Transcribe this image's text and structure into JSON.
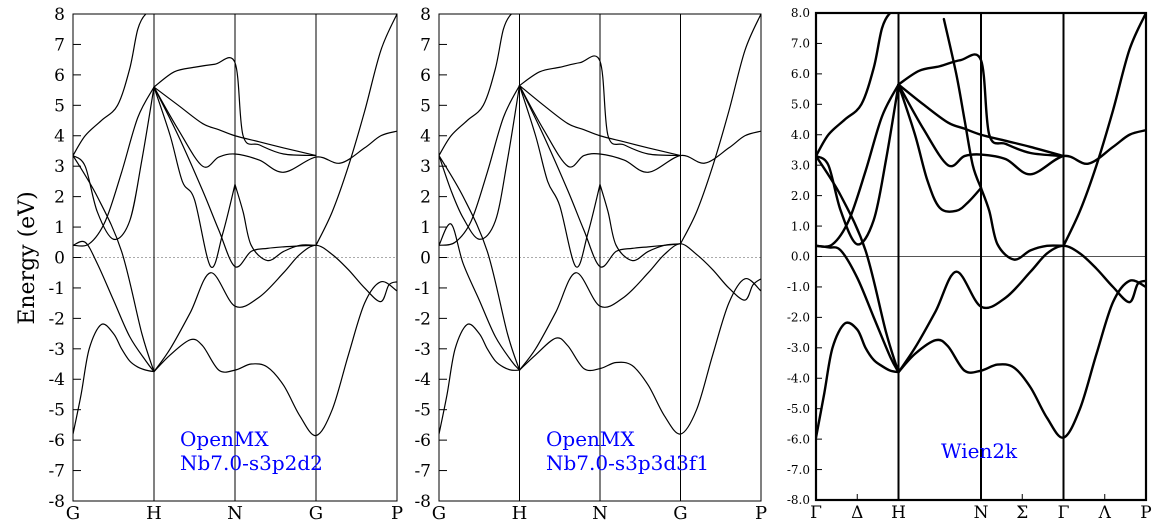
{
  "ylabel": "Energy (eV)",
  "chart_data": [
    {
      "type": "line",
      "title": "",
      "ylim": [
        -8,
        8
      ],
      "ytick_labels": [
        "-8",
        "-7",
        "-6",
        "-5",
        "-4",
        "-3",
        "-2",
        "-1",
        "0",
        "1",
        "2",
        "3",
        "4",
        "5",
        "6",
        "7",
        "8"
      ],
      "xtick_labels": [
        "G",
        "H",
        "N",
        "G",
        "P"
      ],
      "vlines": [
        1,
        2,
        3
      ],
      "zero_line": "dotted",
      "annotation": [
        "OpenMX",
        "Nb7.0-s3p2d2"
      ],
      "annotation_color": "#0000ff",
      "series": [
        {
          "x": [
            0,
            0.1,
            0.2,
            0.35,
            0.5,
            0.6,
            0.7,
            0.8,
            0.9,
            1.0
          ],
          "y": [
            -5.8,
            -4.5,
            -3.0,
            -2.2,
            -2.5,
            -3.0,
            -3.4,
            -3.6,
            -3.7,
            -3.75
          ]
        },
        {
          "x": [
            1.0,
            1.2,
            1.45,
            1.6,
            1.8,
            2.0,
            2.2,
            2.4,
            2.6,
            2.8,
            3.0,
            3.2,
            3.4,
            3.6,
            3.8,
            4.0
          ],
          "y": [
            -3.75,
            -3.2,
            -2.7,
            -2.9,
            -3.7,
            -3.7,
            -3.5,
            -3.6,
            -4.2,
            -5.2,
            -5.85,
            -5.0,
            -3.2,
            -1.5,
            -0.8,
            -1.1
          ]
        },
        {
          "x": [
            0,
            0.15,
            0.3,
            0.5,
            0.7,
            0.9,
            1.0
          ],
          "y": [
            0.4,
            0.5,
            -0.2,
            -1.4,
            -2.6,
            -3.4,
            -3.75
          ]
        },
        {
          "x": [
            1.0,
            1.2,
            1.45,
            1.7,
            2.0,
            2.3,
            2.6,
            2.8,
            3.0,
            3.2,
            3.4,
            3.6,
            3.8,
            3.9,
            4.0
          ],
          "y": [
            -3.75,
            -3.0,
            -1.8,
            -0.5,
            -1.6,
            -1.3,
            -0.5,
            0.1,
            0.4,
            0.1,
            -0.4,
            -1.0,
            -1.45,
            -0.9,
            -0.8
          ]
        },
        {
          "x": [
            0,
            0.3,
            0.6,
            0.85,
            1.0
          ],
          "y": [
            3.35,
            2.0,
            0.2,
            -2.5,
            -3.75
          ]
        },
        {
          "x": [
            0,
            0.2,
            0.4,
            0.6,
            0.8,
            1.0
          ],
          "y": [
            0.4,
            0.45,
            1.2,
            2.8,
            4.6,
            5.6
          ]
        },
        {
          "x": [
            0,
            0.15,
            0.3,
            0.5,
            0.7,
            0.85,
            1.0
          ],
          "y": [
            3.35,
            3.0,
            1.5,
            0.6,
            1.2,
            3.2,
            5.6
          ]
        },
        {
          "x": [
            0,
            0.15,
            0.35,
            0.55,
            0.7,
            0.8,
            0.9,
            1.0
          ],
          "y": [
            3.35,
            4.0,
            4.5,
            5.0,
            6.2,
            7.5,
            8.0,
            8.0
          ]
        },
        {
          "x": [
            1.0,
            1.2,
            1.35,
            1.5,
            1.7,
            1.85,
            2.0
          ],
          "y": [
            5.6,
            4.0,
            2.5,
            1.9,
            -0.3,
            0.8,
            2.4
          ]
        },
        {
          "x": [
            2.0,
            2.1,
            2.2,
            2.4,
            2.6,
            2.8,
            3.0
          ],
          "y": [
            2.4,
            1.5,
            0.4,
            -0.1,
            0.2,
            0.4,
            0.4
          ]
        },
        {
          "x": [
            1.0,
            1.3,
            1.6,
            1.8,
            2.0,
            2.3,
            2.6,
            3.0,
            3.3,
            3.6,
            3.8,
            4.0
          ],
          "y": [
            5.6,
            4.2,
            3.0,
            3.3,
            3.4,
            3.2,
            2.8,
            3.3,
            3.1,
            3.6,
            4.0,
            4.15
          ]
        },
        {
          "x": [
            1.0,
            1.25,
            1.5,
            1.75,
            2.0,
            2.1,
            2.3,
            2.6,
            3.0
          ],
          "y": [
            5.6,
            6.1,
            6.25,
            6.35,
            6.4,
            4.0,
            3.7,
            3.4,
            3.35
          ]
        },
        {
          "x": [
            1.0,
            1.3,
            1.6,
            1.8,
            2.0,
            2.3,
            2.6,
            3.0
          ],
          "y": [
            5.6,
            5.0,
            4.4,
            4.2,
            4.0,
            3.8,
            3.6,
            3.35
          ]
        },
        {
          "x": [
            1.0,
            1.3,
            1.6,
            1.8,
            2.0,
            2.2,
            2.4,
            2.6,
            2.8,
            3.0
          ],
          "y": [
            5.6,
            4.0,
            2.2,
            0.9,
            -0.3,
            0.2,
            0.3,
            0.35,
            0.38,
            0.4
          ]
        },
        {
          "x": [
            3.0,
            3.2,
            3.4,
            3.6,
            3.8,
            4.0
          ],
          "y": [
            0.4,
            1.5,
            3.0,
            4.8,
            6.8,
            8.0
          ]
        }
      ]
    },
    {
      "type": "line",
      "title": "",
      "ylim": [
        -8,
        8
      ],
      "ytick_labels": [
        "-8",
        "-7",
        "-6",
        "-5",
        "-4",
        "-3",
        "-2",
        "-1",
        "0",
        "1",
        "2",
        "3",
        "4",
        "5",
        "6",
        "7",
        "8"
      ],
      "xtick_labels": [
        "G",
        "H",
        "N",
        "G",
        "P"
      ],
      "vlines": [
        1,
        2,
        3
      ],
      "zero_line": "dotted",
      "annotation": [
        "OpenMX",
        "Nb7.0-s3p3d3f1"
      ],
      "annotation_color": "#0000ff",
      "series": [
        {
          "x": [
            0,
            0.1,
            0.2,
            0.35,
            0.5,
            0.6,
            0.7,
            0.8,
            0.9,
            1.0
          ],
          "y": [
            -5.8,
            -4.5,
            -3.0,
            -2.2,
            -2.5,
            -3.0,
            -3.4,
            -3.6,
            -3.7,
            -3.7
          ]
        },
        {
          "x": [
            1.0,
            1.2,
            1.45,
            1.6,
            1.8,
            2.0,
            2.2,
            2.4,
            2.6,
            2.8,
            3.0,
            3.2,
            3.4,
            3.6,
            3.8,
            4.0
          ],
          "y": [
            -3.7,
            -3.2,
            -2.65,
            -2.9,
            -3.65,
            -3.65,
            -3.45,
            -3.55,
            -4.2,
            -5.2,
            -5.8,
            -5.0,
            -3.2,
            -1.5,
            -0.7,
            -1.1
          ]
        },
        {
          "x": [
            0,
            0.15,
            0.3,
            0.5,
            0.7,
            0.9,
            1.0
          ],
          "y": [
            0.4,
            1.1,
            -0.2,
            -1.4,
            -2.6,
            -3.4,
            -3.7
          ]
        },
        {
          "x": [
            1.0,
            1.2,
            1.45,
            1.7,
            2.0,
            2.3,
            2.6,
            2.8,
            3.0,
            3.2,
            3.4,
            3.6,
            3.8,
            3.9,
            4.0
          ],
          "y": [
            -3.7,
            -3.0,
            -1.8,
            -0.5,
            -1.6,
            -1.3,
            -0.5,
            0.1,
            0.45,
            0.1,
            -0.4,
            -1.0,
            -1.4,
            -0.9,
            -0.7
          ]
        },
        {
          "x": [
            0,
            0.3,
            0.6,
            0.85,
            1.0
          ],
          "y": [
            3.35,
            2.0,
            0.2,
            -2.5,
            -3.7
          ]
        },
        {
          "x": [
            0,
            0.2,
            0.4,
            0.6,
            0.8,
            1.0
          ],
          "y": [
            0.4,
            0.5,
            1.2,
            2.8,
            4.6,
            5.65
          ]
        },
        {
          "x": [
            0,
            0.15,
            0.3,
            0.5,
            0.7,
            0.85,
            1.0
          ],
          "y": [
            3.35,
            2.2,
            1.3,
            0.6,
            1.2,
            3.2,
            5.65
          ]
        },
        {
          "x": [
            0,
            0.15,
            0.35,
            0.55,
            0.7,
            0.8,
            0.9,
            1.0
          ],
          "y": [
            3.35,
            4.0,
            4.5,
            5.0,
            6.2,
            7.5,
            8.0,
            8.0
          ]
        },
        {
          "x": [
            1.0,
            1.2,
            1.35,
            1.5,
            1.7,
            1.85,
            2.0
          ],
          "y": [
            5.65,
            4.0,
            2.5,
            1.7,
            -0.3,
            0.8,
            2.4
          ]
        },
        {
          "x": [
            2.0,
            2.1,
            2.2,
            2.4,
            2.6,
            2.8,
            3.0
          ],
          "y": [
            2.4,
            1.5,
            0.4,
            -0.1,
            0.2,
            0.4,
            0.45
          ]
        },
        {
          "x": [
            1.0,
            1.3,
            1.6,
            1.8,
            2.0,
            2.3,
            2.6,
            3.0,
            3.3,
            3.6,
            3.8,
            4.0
          ],
          "y": [
            5.65,
            4.2,
            3.0,
            3.35,
            3.4,
            3.2,
            2.8,
            3.35,
            3.1,
            3.6,
            4.0,
            4.15
          ]
        },
        {
          "x": [
            1.0,
            1.25,
            1.5,
            1.75,
            2.0,
            2.1,
            2.3,
            2.6,
            3.0
          ],
          "y": [
            5.65,
            6.1,
            6.25,
            6.4,
            6.45,
            4.0,
            3.7,
            3.4,
            3.35
          ]
        },
        {
          "x": [
            1.0,
            1.3,
            1.6,
            1.8,
            2.0,
            2.3,
            2.6,
            3.0
          ],
          "y": [
            5.65,
            5.0,
            4.4,
            4.2,
            4.0,
            3.8,
            3.6,
            3.35
          ]
        },
        {
          "x": [
            1.0,
            1.3,
            1.6,
            1.8,
            2.0,
            2.2,
            2.4,
            2.6,
            2.8,
            3.0
          ],
          "y": [
            5.65,
            4.0,
            2.2,
            0.9,
            -0.3,
            0.2,
            0.3,
            0.35,
            0.4,
            0.45
          ]
        },
        {
          "x": [
            3.0,
            3.2,
            3.4,
            3.6,
            3.8,
            4.0
          ],
          "y": [
            0.45,
            1.5,
            3.0,
            4.8,
            6.8,
            8.0
          ]
        }
      ]
    },
    {
      "type": "line",
      "title": "",
      "ylim": [
        -8,
        8
      ],
      "ytick_labels": [
        "-8.0",
        "-7.0",
        "-6.0",
        "-5.0",
        "-4.0",
        "-3.0",
        "-2.0",
        "-1.0",
        "0.0",
        "1.0",
        "2.0",
        "3.0",
        "4.0",
        "5.0",
        "6.0",
        "7.0",
        "8.0"
      ],
      "xtick_labels": [
        "Γ",
        "Δ",
        "H",
        "N",
        "Σ",
        "Γ",
        "Λ",
        "P"
      ],
      "xtick_positions": [
        0,
        0.5,
        1,
        2,
        2.5,
        3,
        3.5,
        4
      ],
      "vlines": [
        1,
        2,
        3
      ],
      "zero_line": "solid",
      "annotation": [
        "Wien2k"
      ],
      "annotation_color": "#0000ff",
      "series": [
        {
          "x": [
            0,
            0.1,
            0.2,
            0.35,
            0.5,
            0.6,
            0.7,
            0.8,
            0.9,
            1.0
          ],
          "y": [
            -5.95,
            -4.5,
            -3.0,
            -2.2,
            -2.4,
            -3.0,
            -3.4,
            -3.6,
            -3.75,
            -3.8
          ]
        },
        {
          "x": [
            1.0,
            1.2,
            1.45,
            1.6,
            1.8,
            2.0,
            2.2,
            2.4,
            2.6,
            2.8,
            3.0,
            3.2,
            3.4,
            3.6,
            3.8,
            4.0
          ],
          "y": [
            -3.8,
            -3.2,
            -2.75,
            -2.95,
            -3.75,
            -3.75,
            -3.55,
            -3.65,
            -4.3,
            -5.3,
            -5.95,
            -5.0,
            -3.2,
            -1.5,
            -0.8,
            -1.0
          ]
        },
        {
          "x": [
            0,
            0.15,
            0.3,
            0.5,
            0.7,
            0.9,
            1.0
          ],
          "y": [
            0.35,
            0.3,
            0.2,
            -0.7,
            -2.0,
            -3.3,
            -3.8
          ]
        },
        {
          "x": [
            1.0,
            1.2,
            1.45,
            1.7,
            2.0,
            2.3,
            2.6,
            2.8,
            3.0,
            3.2,
            3.4,
            3.6,
            3.8,
            3.9,
            4.0
          ],
          "y": [
            -3.8,
            -3.0,
            -1.8,
            -0.5,
            -1.65,
            -1.35,
            -0.5,
            0.1,
            0.35,
            0.1,
            -0.4,
            -1.0,
            -1.5,
            -0.9,
            -0.8
          ]
        },
        {
          "x": [
            0,
            0.3,
            0.6,
            0.85,
            1.0
          ],
          "y": [
            3.3,
            2.0,
            0.2,
            -2.5,
            -3.8
          ]
        },
        {
          "x": [
            0,
            0.2,
            0.4,
            0.6,
            0.8,
            1.0
          ],
          "y": [
            0.35,
            0.4,
            1.2,
            2.8,
            4.6,
            5.65
          ]
        },
        {
          "x": [
            0,
            0.15,
            0.3,
            0.5,
            0.7,
            0.85,
            1.0
          ],
          "y": [
            3.3,
            3.0,
            1.5,
            0.4,
            1.2,
            3.2,
            5.65
          ]
        },
        {
          "x": [
            0,
            0.15,
            0.35,
            0.55,
            0.7,
            0.8,
            0.9,
            1.0
          ],
          "y": [
            3.3,
            4.0,
            4.5,
            5.0,
            6.2,
            7.5,
            8.0,
            8.0
          ]
        },
        {
          "x": [
            1.0,
            1.2,
            1.35,
            1.5,
            1.7,
            1.85,
            2.0
          ],
          "y": [
            5.65,
            4.0,
            2.5,
            1.6,
            1.5,
            1.8,
            2.25
          ]
        },
        {
          "x": [
            2.0,
            2.1,
            2.2,
            2.4,
            2.6,
            2.8,
            3.0
          ],
          "y": [
            2.25,
            1.5,
            0.4,
            -0.1,
            0.2,
            0.35,
            0.35
          ]
        },
        {
          "x": [
            1.0,
            1.3,
            1.6,
            1.8,
            2.0,
            2.3,
            2.6,
            3.0,
            3.3,
            3.6,
            3.8,
            4.0
          ],
          "y": [
            5.65,
            4.2,
            3.0,
            3.3,
            3.35,
            3.2,
            2.7,
            3.3,
            3.05,
            3.6,
            4.0,
            4.15
          ]
        },
        {
          "x": [
            1.0,
            1.25,
            1.5,
            1.75,
            2.0,
            2.1,
            2.3,
            2.6,
            3.0
          ],
          "y": [
            5.65,
            6.1,
            6.25,
            6.45,
            6.45,
            4.0,
            3.7,
            3.4,
            3.3
          ]
        },
        {
          "x": [
            1.0,
            1.3,
            1.6,
            1.8,
            2.0,
            2.3,
            2.6,
            3.0
          ],
          "y": [
            5.65,
            5.0,
            4.4,
            4.2,
            4.0,
            3.8,
            3.6,
            3.3
          ]
        },
        {
          "x": [
            1.55,
            1.7,
            1.8,
            1.9,
            2.0
          ],
          "y": [
            7.8,
            6.0,
            4.5,
            3.0,
            2.25
          ]
        },
        {
          "x": [
            3.0,
            3.2,
            3.4,
            3.6,
            3.8,
            4.0
          ],
          "y": [
            0.35,
            1.5,
            3.0,
            4.8,
            6.8,
            8.0
          ]
        }
      ]
    }
  ]
}
